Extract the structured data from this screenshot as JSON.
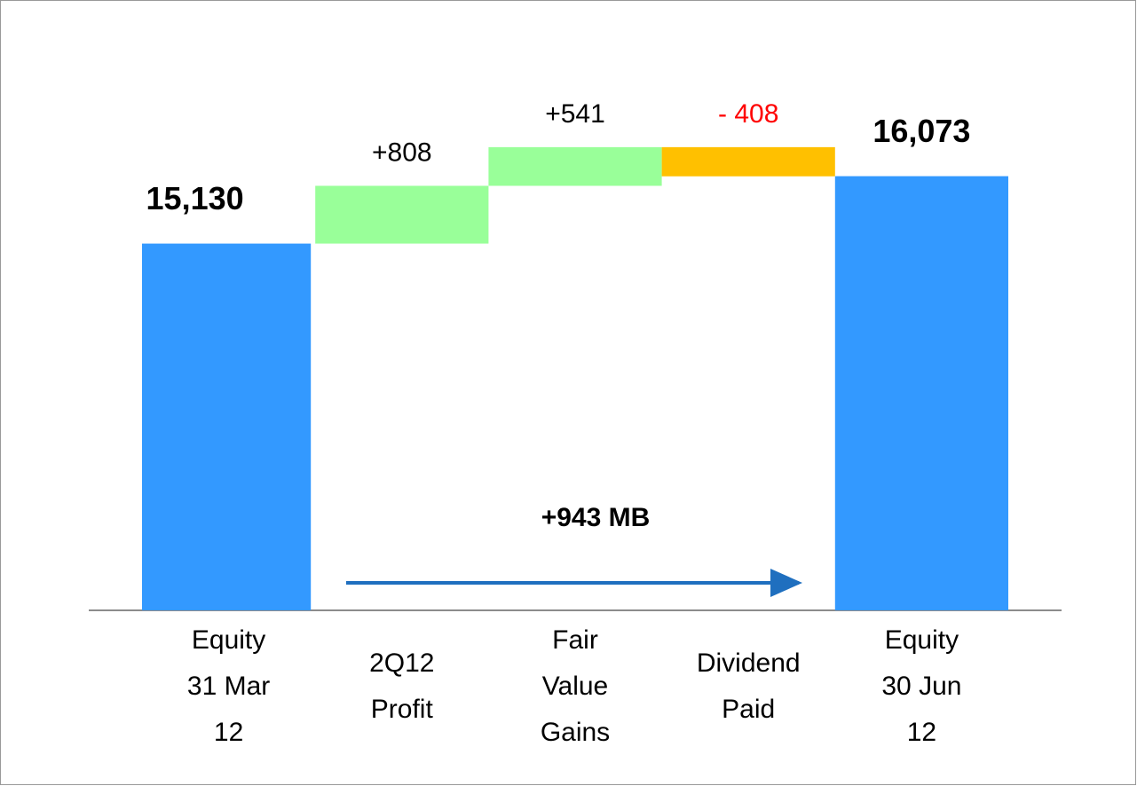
{
  "chart_data": {
    "type": "waterfall",
    "categories": [
      [
        "Equity",
        "31 Mar",
        "12"
      ],
      [
        "2Q12",
        "Profit"
      ],
      [
        "Fair",
        "Value",
        "Gains"
      ],
      [
        "Dividend",
        "Paid"
      ],
      [
        "Equity",
        "30 Jun",
        "12"
      ]
    ],
    "values": [
      15130,
      808,
      541,
      -408,
      16073
    ],
    "value_labels": [
      "15,130",
      "+808",
      "+541",
      "- 408",
      "16,073"
    ],
    "totals": [
      true,
      false,
      false,
      false,
      true
    ],
    "colors": {
      "total": "#3399ff",
      "increase": "#99ff99",
      "decrease": "#ffc000",
      "decrease_label": "#ff0000"
    },
    "ylim": [
      10000,
      16800
    ],
    "annotation": "+943 MB"
  }
}
